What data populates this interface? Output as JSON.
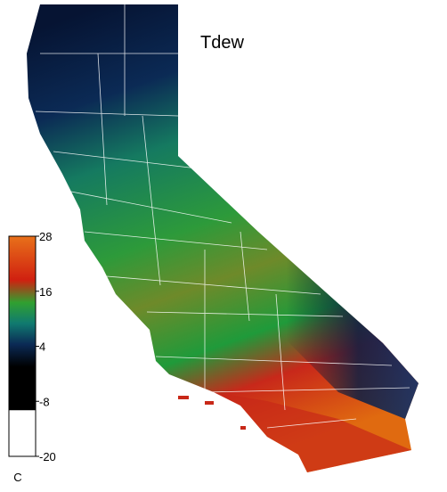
{
  "title": "Tdew",
  "colorbar": {
    "lim": [
      -20,
      28
    ],
    "ticks": [
      28,
      16,
      4,
      -8,
      -20
    ],
    "unit": "C"
  }
}
